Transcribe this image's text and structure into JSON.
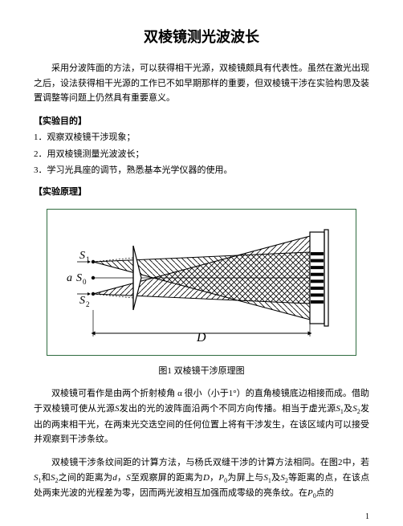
{
  "title": "双棱镜测光波波长",
  "intro": "采用分波阵面的方法，可以获得相干光源，双棱镜颇具有代表性。虽然在激光出现之后，设法获得相干光源的工作已不如早期那样的重要，但双棱镜干涉在实验构思及装置调整等问题上仍然具有重要意义。",
  "section1_head": "【实验目的】",
  "obj1": "1．观察双棱镜干涉现象；",
  "obj2": "2．用双棱镜测量光波波长；",
  "obj3": "3．学习光具座的调节，熟悉基本光学仪器的使用。",
  "section2_head": "【实验原理】",
  "fig_caption": "图1 双棱镜干涉原理图",
  "para2_a": "双棱镜可看作是由两个折射棱角 α 很小（小于1°）的直角棱镜底边相接而成。借助于双棱镜可使从光源",
  "para2_b": "发出的光的波阵面沿两个不同方向传播。相当于虚光源",
  "para2_c": "及",
  "para2_d": "发出的两束相干光，在两束光交迭空间的任何位置上将有干涉发生，在该区域内可以接受并观察到干涉条纹。",
  "para3_a": "双棱镜干涉条纹间距的计算方法，与杨氏双缝干涉的计算方法相同。在图2中，若",
  "para3_b": "和",
  "para3_c": "之间的距离为",
  "para3_d": "，",
  "para3_e": "至观察屏的距离为",
  "para3_f": "，",
  "para3_g": "为屏上与",
  "para3_h": "及",
  "para3_i": "等距离的点，在该点处两束光波的光程差为零，因而两光波相互加强而成零级的亮条纹。在",
  "para3_j": "点的",
  "page_num": "1",
  "labels": {
    "S1": "S",
    "S1sub": "1",
    "Sa": "a",
    "S0": "S",
    "S0sub": "0",
    "S2": "S",
    "S2sub": "2",
    "D": "D"
  },
  "colors": {
    "border": "#2f6c3f",
    "line": "#000000",
    "hatch": "#000000"
  }
}
